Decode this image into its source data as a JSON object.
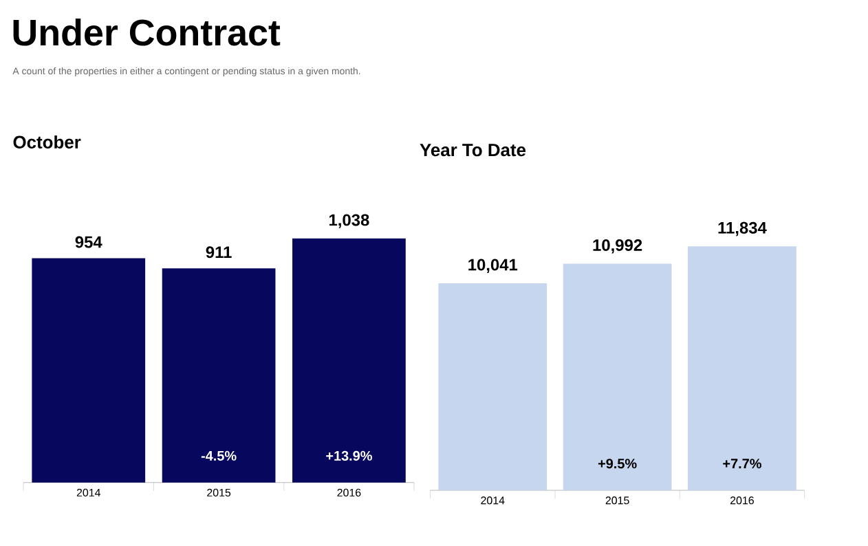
{
  "chart_data": [
    {
      "type": "other",
      "title": "Under Contract",
      "subtitle": "A count of the properties in either a contingent or pending status in a given month."
    },
    {
      "type": "bar",
      "title": "October",
      "categories": [
        "2014",
        "2015",
        "2016"
      ],
      "values": [
        954,
        911,
        1038
      ],
      "color": "#07075e",
      "value_labels": [
        "954",
        "911",
        "1,038"
      ],
      "annotations": [
        "-4.5%",
        "+13.9%"
      ]
    },
    {
      "type": "bar",
      "title": "Year To Date",
      "categories": [
        "2014",
        "2015",
        "2016"
      ],
      "values": [
        10041,
        10992,
        11834
      ],
      "color": "#c6d6ee",
      "value_labels": [
        "10,041",
        "10,992",
        "11,834"
      ],
      "annotations": [
        "+9.5%",
        "+7.7%"
      ]
    }
  ]
}
